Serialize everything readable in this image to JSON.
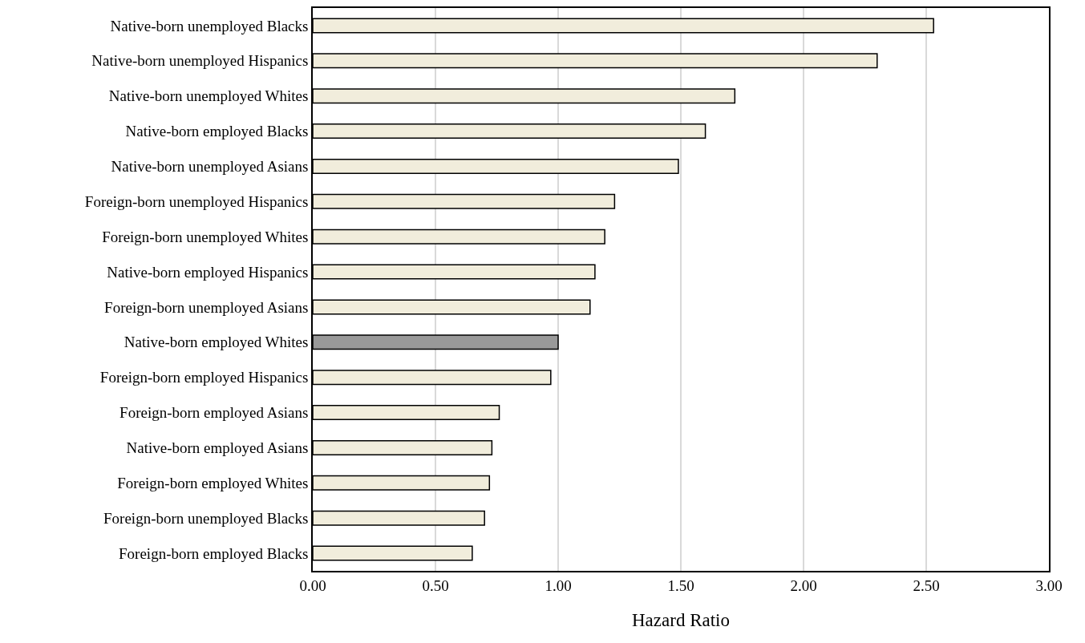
{
  "chart_data": {
    "type": "bar",
    "orientation": "horizontal",
    "xlabel": "Hazard Ratio",
    "categories": [
      "Native-born unemployed Blacks",
      "Native-born unemployed Hispanics",
      "Native-born unemployed Whites",
      "Native-born employed Blacks",
      "Native-born unemployed Asians",
      "Foreign-born unemployed Hispanics",
      "Foreign-born unemployed Whites",
      "Native-born employed Hispanics",
      "Foreign-born unemployed Asians",
      "Native-born employed Whites",
      "Foreign-born employed Hispanics",
      "Foreign-born employed Asians",
      "Native-born employed Asians",
      "Foreign-born employed Whites",
      "Foreign-born unemployed Blacks",
      "Foreign-born employed Blacks"
    ],
    "values": [
      2.53,
      2.3,
      1.72,
      1.6,
      1.49,
      1.23,
      1.19,
      1.15,
      1.13,
      1.0,
      0.97,
      0.76,
      0.73,
      0.72,
      0.7,
      0.65
    ],
    "colors": [
      "#f1eddc",
      "#f1eddc",
      "#f1eddc",
      "#f1eddc",
      "#f1eddc",
      "#f1eddc",
      "#f1eddc",
      "#f1eddc",
      "#f1eddc",
      "#999999",
      "#f1eddc",
      "#f1eddc",
      "#f1eddc",
      "#f1eddc",
      "#f1eddc",
      "#f1eddc"
    ],
    "xlim": [
      0,
      3
    ],
    "xticks": [
      {
        "value": 0,
        "label": "0.00"
      },
      {
        "value": 0.5,
        "label": "0.50"
      },
      {
        "value": 1,
        "label": "1.00"
      },
      {
        "value": 1.5,
        "label": "1.50"
      },
      {
        "value": 2,
        "label": "2.00"
      },
      {
        "value": 2.5,
        "label": "2.50"
      },
      {
        "value": 3,
        "label": "3.00"
      }
    ],
    "grid": "x"
  }
}
